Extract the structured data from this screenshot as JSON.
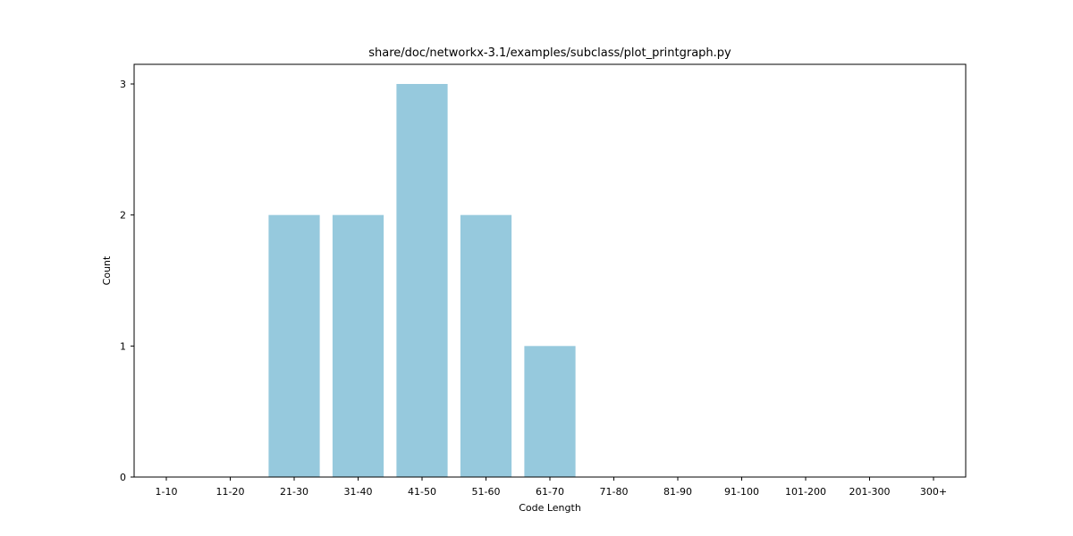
{
  "chart_data": {
    "type": "bar",
    "title": "share/doc/networkx-3.1/examples/subclass/plot_printgraph.py",
    "xlabel": "Code Length",
    "ylabel": "Count",
    "categories": [
      "1-10",
      "11-20",
      "21-30",
      "31-40",
      "41-50",
      "51-60",
      "61-70",
      "71-80",
      "81-90",
      "91-100",
      "101-200",
      "201-300",
      "300+"
    ],
    "values": [
      0,
      0,
      2,
      2,
      3,
      2,
      1,
      0,
      0,
      0,
      0,
      0,
      0
    ],
    "ylim": [
      0,
      3.15
    ],
    "yticks": [
      0,
      1,
      2,
      3
    ],
    "bar_color": "#96c9dd",
    "grid": false,
    "legend": "none"
  }
}
